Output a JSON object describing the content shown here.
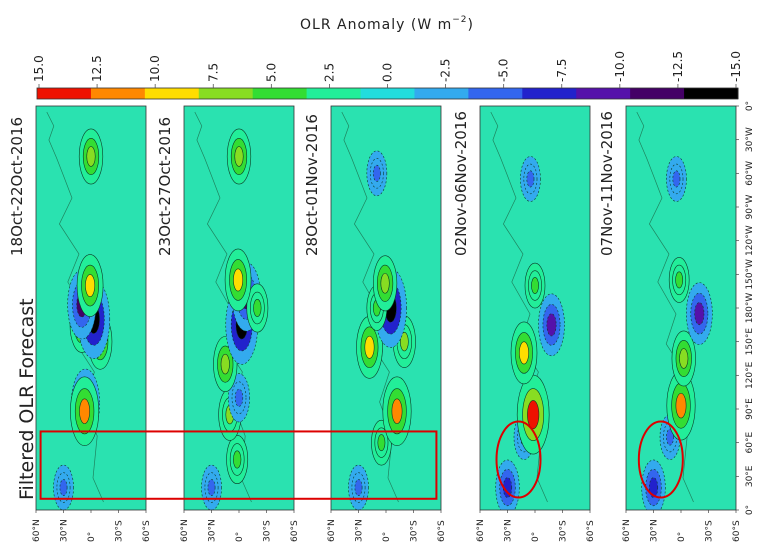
{
  "chart_data": {
    "type": "heatmap",
    "title": "OLR Anomaly (W m",
    "title_exponent": "−2",
    "side_title": "Filtered OLR Forecast",
    "colorbar": {
      "ticks": [
        "15.0",
        "12.5",
        "10.0",
        "7.5",
        "5.0",
        "2.5",
        "0.0",
        "-2.5",
        "-5.0",
        "-7.5",
        "-10.0",
        "-12.5",
        "-15.0"
      ],
      "range": [
        15.0,
        -15.0
      ],
      "colors": [
        "#ee1100",
        "#ff8800",
        "#ffdd00",
        "#88dd22",
        "#33dd33",
        "#22ee99",
        "#22dddd",
        "#33aaee",
        "#3366ee",
        "#2222cc",
        "#5511aa",
        "#440066",
        "#000000"
      ]
    },
    "panels": [
      {
        "period": "18Oct-22Oct-2016",
        "anomalies": [
          {
            "lon": 20,
            "lat": 30,
            "value": -5.0
          },
          {
            "lon": 95,
            "lat": 6,
            "value": -12.0
          },
          {
            "lon": 88,
            "lat": 7,
            "value": 12.0
          },
          {
            "lon": 150,
            "lat": -10,
            "value": 8.0
          },
          {
            "lon": 165,
            "lat": 10,
            "value": 8.0
          },
          {
            "lon": 170,
            "lat": -3,
            "value": -15.0
          },
          {
            "lon": 183,
            "lat": 10,
            "value": -12.0
          },
          {
            "lon": 200,
            "lat": 1,
            "value": 10.0
          },
          {
            "lon": 315,
            "lat": 0,
            "value": 8.0
          }
        ]
      },
      {
        "period": "23Oct-27Oct-2016",
        "anomalies": [
          {
            "lon": 20,
            "lat": 30,
            "value": -5.0
          },
          {
            "lon": 45,
            "lat": 2,
            "value": 6.0
          },
          {
            "lon": 85,
            "lat": 10,
            "value": 7.0
          },
          {
            "lon": 100,
            "lat": 0,
            "value": -6.0
          },
          {
            "lon": 130,
            "lat": 15,
            "value": 8.0
          },
          {
            "lon": 165,
            "lat": -3,
            "value": -15.0
          },
          {
            "lon": 190,
            "lat": -8,
            "value": -12.0
          },
          {
            "lon": 180,
            "lat": -20,
            "value": 6.0
          },
          {
            "lon": 205,
            "lat": 1,
            "value": 10.0
          },
          {
            "lon": 315,
            "lat": 0,
            "value": 8.0
          }
        ]
      },
      {
        "period": "28Oct-01Nov-2016",
        "anomalies": [
          {
            "lon": 20,
            "lat": 30,
            "value": -5.0
          },
          {
            "lon": 60,
            "lat": 5,
            "value": 5.0
          },
          {
            "lon": 88,
            "lat": -12,
            "value": 12.0
          },
          {
            "lon": 145,
            "lat": 18,
            "value": 10.0
          },
          {
            "lon": 150,
            "lat": -20,
            "value": 7.0
          },
          {
            "lon": 180,
            "lat": -5,
            "value": -15.0
          },
          {
            "lon": 180,
            "lat": 10,
            "value": 5.0
          },
          {
            "lon": 202,
            "lat": 1,
            "value": 8.0
          },
          {
            "lon": 300,
            "lat": 10,
            "value": -5.0
          }
        ]
      },
      {
        "period": "02Nov-06Nov-2016",
        "anomalies": [
          {
            "lon": 20,
            "lat": 30,
            "value": -8.0
          },
          {
            "lon": 65,
            "lat": 12,
            "value": -5.0
          },
          {
            "lon": 85,
            "lat": 2,
            "value": 15.0
          },
          {
            "lon": 140,
            "lat": 12,
            "value": 10.0
          },
          {
            "lon": 165,
            "lat": -18,
            "value": -10.0
          },
          {
            "lon": 200,
            "lat": 0,
            "value": 5.0
          },
          {
            "lon": 295,
            "lat": 5,
            "value": -5.0
          }
        ]
      },
      {
        "period": "07Nov-11Nov-2016",
        "anomalies": [
          {
            "lon": 20,
            "lat": 30,
            "value": -8.0
          },
          {
            "lon": 65,
            "lat": 12,
            "value": -5.0
          },
          {
            "lon": 93,
            "lat": 0,
            "value": 12.0
          },
          {
            "lon": 135,
            "lat": -3,
            "value": 8.0
          },
          {
            "lon": 175,
            "lat": -20,
            "value": -10.0
          },
          {
            "lon": 205,
            "lat": 2,
            "value": 5.0
          },
          {
            "lon": 295,
            "lat": 5,
            "value": -5.0
          }
        ]
      }
    ],
    "lat_ticks": [
      "60°N",
      "30°N",
      "0°",
      "30°S",
      "60°S"
    ],
    "lat_values": [
      60,
      30,
      0,
      -30,
      -60
    ],
    "lon_ticks": [
      "0°",
      "30°E",
      "60°E",
      "90°E",
      "120°E",
      "150°E",
      "180°W",
      "150°W",
      "120°W",
      "90°W",
      "60°W",
      "30°W",
      "0°"
    ],
    "lon_values": [
      0,
      30,
      60,
      90,
      120,
      150,
      180,
      210,
      240,
      270,
      300,
      330,
      360
    ],
    "lat_range": [
      60,
      -60
    ],
    "lon_range": [
      0,
      360
    ],
    "highlight_box": {
      "lon_range": [
        10,
        70
      ],
      "lat_range": [
        55,
        -55
      ],
      "panels": [
        "18Oct-22Oct-2016",
        "23Oct-27Oct-2016",
        "28Oct-01Nov-2016"
      ],
      "color": "#dd0000"
    },
    "highlight_ellipses": [
      {
        "panel": "02Nov-06Nov-2016",
        "lon": 45,
        "lat": 18,
        "color": "#dd0000"
      },
      {
        "panel": "07Nov-11Nov-2016",
        "lon": 45,
        "lat": 22,
        "color": "#dd0000"
      }
    ]
  }
}
